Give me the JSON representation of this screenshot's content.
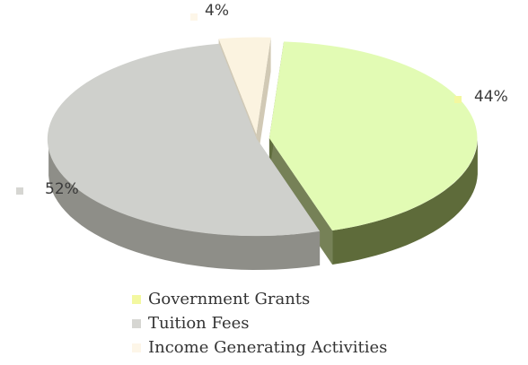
{
  "chart_data": {
    "type": "pie",
    "title": "",
    "categories": [
      "Government Grants",
      "Tuition Fees",
      "Income Generating Activities"
    ],
    "values": [
      44,
      52,
      4
    ],
    "value_labels": [
      "44%",
      "52%",
      "4%"
    ],
    "colors": [
      "#e2fbb4",
      "#cfd0cc",
      "#fbf3e0"
    ],
    "side_colors": [
      "#5e6b3a",
      "#8e8e88",
      "#c9bfa8"
    ],
    "legend_position": "bottom",
    "style": "3d-exploded"
  },
  "legend": {
    "items": [
      {
        "label": "Government Grants",
        "color": "#f3f8a0"
      },
      {
        "label": "Tuition Fees",
        "color": "#d6d6d2"
      },
      {
        "label": "Income Generating Activities",
        "color": "#fdf6e8"
      }
    ]
  }
}
